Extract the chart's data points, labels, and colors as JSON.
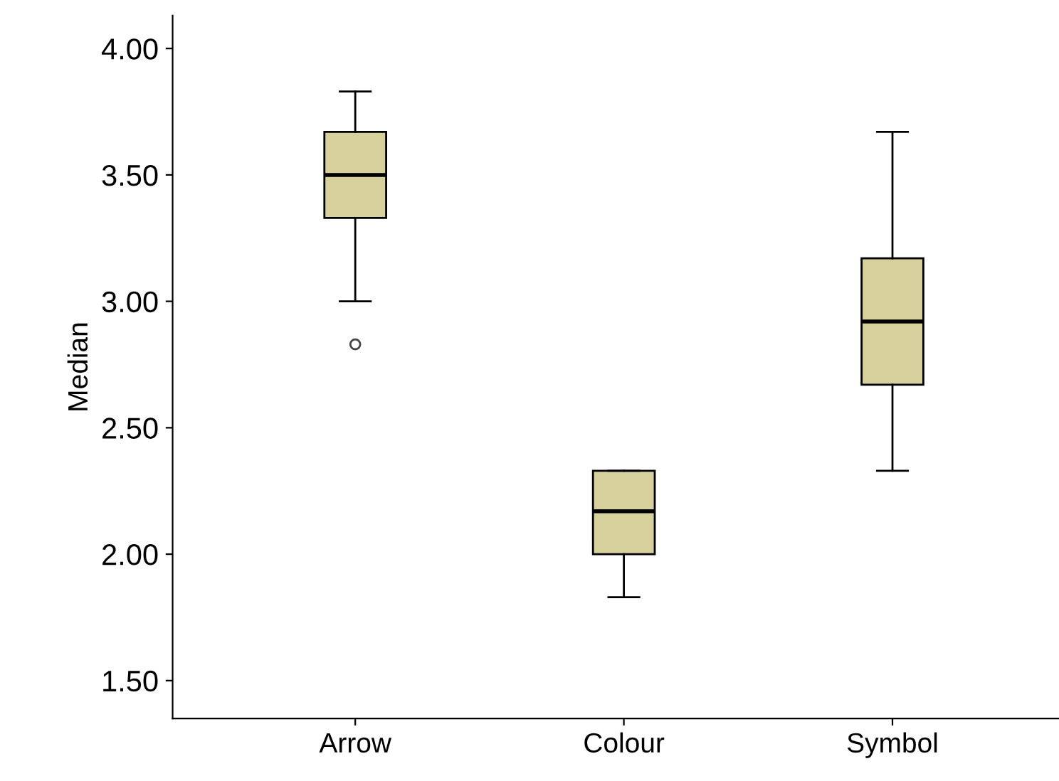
{
  "chart_data": {
    "type": "box",
    "ylabel": "Median",
    "categories": [
      "Arrow",
      "Colour",
      "Symbol"
    ],
    "color": "#d6d09c",
    "boxes": [
      {
        "low": 3.0,
        "q1": 3.33,
        "median": 3.5,
        "q3": 3.67,
        "high": 3.83,
        "outliers": [
          2.83
        ]
      },
      {
        "low": 1.83,
        "q1": 2.0,
        "median": 2.17,
        "q3": 2.33,
        "high": 2.33
      },
      {
        "low": 2.33,
        "q1": 2.67,
        "median": 2.92,
        "q3": 3.17,
        "high": 3.67
      }
    ],
    "ylim": [
      1.35,
      4.13
    ],
    "yticks": [
      {
        "value": 1.5,
        "label": "1.50"
      },
      {
        "value": 2.0,
        "label": "2.00"
      },
      {
        "value": 2.5,
        "label": "2.50"
      },
      {
        "value": 3.0,
        "label": "3.00"
      },
      {
        "value": 3.5,
        "label": "3.50"
      },
      {
        "value": 4.0,
        "label": "4.00"
      }
    ],
    "grid": false
  }
}
